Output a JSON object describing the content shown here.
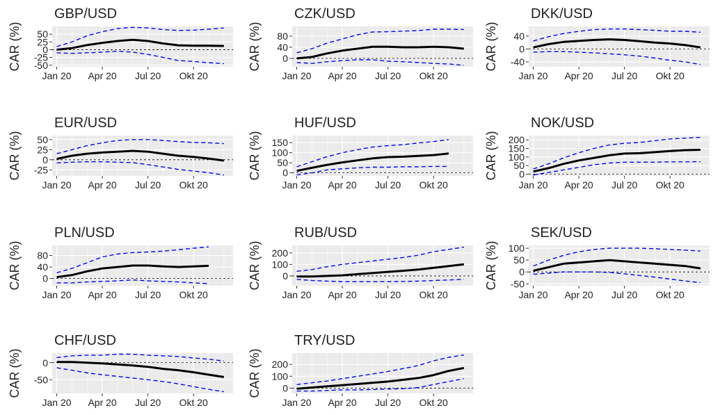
{
  "chart_data": [
    {
      "type": "line",
      "title": "GBP/USD",
      "ylabel": "CAR (%)",
      "categories": [
        "Jan 20",
        null,
        null,
        "Apr 20",
        null,
        null,
        "Jul 20",
        null,
        null,
        "Okt 20",
        null,
        null
      ],
      "ylim": [
        -55,
        75
      ],
      "yticks": [
        -50,
        -25,
        0,
        25,
        50
      ],
      "grid": true,
      "refline": 0,
      "series": [
        {
          "color": "#000000",
          "dash": false,
          "values": [
            0,
            5,
            15,
            22,
            28,
            32,
            28,
            20,
            14,
            13,
            13,
            12
          ]
        },
        {
          "color": "#0000ff",
          "dash": true,
          "values": [
            10,
            25,
            45,
            58,
            68,
            72,
            70,
            65,
            62,
            63,
            66,
            70
          ]
        },
        {
          "color": "#0000ff",
          "dash": true,
          "values": [
            -10,
            -12,
            -10,
            -8,
            -5,
            -8,
            -15,
            -25,
            -35,
            -38,
            -42,
            -45
          ]
        }
      ]
    },
    {
      "type": "line",
      "title": "CZK/USD",
      "ylabel": "CAR (%)",
      "categories": [
        "Jan 20",
        null,
        null,
        "Apr 20",
        null,
        null,
        "Jul 20",
        null,
        null,
        "Okt 20",
        null,
        null
      ],
      "ylim": [
        -30,
        115
      ],
      "yticks": [
        0,
        40,
        80
      ],
      "grid": true,
      "refline": 0,
      "series": [
        {
          "color": "#000000",
          "dash": false,
          "values": [
            0,
            5,
            18,
            28,
            35,
            42,
            42,
            40,
            40,
            42,
            40,
            35
          ]
        },
        {
          "color": "#0000ff",
          "dash": true,
          "values": [
            20,
            35,
            55,
            70,
            85,
            95,
            96,
            98,
            100,
            105,
            105,
            104
          ]
        },
        {
          "color": "#0000ff",
          "dash": true,
          "values": [
            -15,
            -18,
            -12,
            -8,
            -5,
            -5,
            -10,
            -12,
            -15,
            -18,
            -20,
            -25
          ]
        }
      ]
    },
    {
      "type": "line",
      "title": "DKK/USD",
      "ylabel": "CAR (%)",
      "categories": [
        "Jan 20",
        null,
        null,
        "Apr 20",
        null,
        null,
        "Jul 20",
        null,
        null,
        "Okt 20",
        null,
        null
      ],
      "ylim": [
        -55,
        70
      ],
      "yticks": [
        -40,
        0,
        40
      ],
      "grid": true,
      "refline": 0,
      "series": [
        {
          "color": "#000000",
          "dash": false,
          "values": [
            5,
            15,
            22,
            25,
            28,
            30,
            28,
            24,
            20,
            17,
            12,
            5
          ]
        },
        {
          "color": "#0000ff",
          "dash": true,
          "values": [
            25,
            38,
            48,
            55,
            60,
            62,
            62,
            60,
            58,
            55,
            55,
            52
          ]
        },
        {
          "color": "#0000ff",
          "dash": true,
          "values": [
            -10,
            -8,
            -8,
            -10,
            -12,
            -15,
            -18,
            -22,
            -28,
            -35,
            -40,
            -48
          ]
        }
      ]
    },
    {
      "type": "line",
      "title": "EUR/USD",
      "ylabel": "CAR (%)",
      "categories": [
        "Jan 20",
        null,
        null,
        "Apr 20",
        null,
        null,
        "Jul 20",
        null,
        null,
        "Okt 20",
        null,
        null
      ],
      "ylim": [
        -40,
        60
      ],
      "yticks": [
        -25,
        0,
        25,
        50
      ],
      "grid": true,
      "refline": 0,
      "series": [
        {
          "color": "#000000",
          "dash": false,
          "values": [
            2,
            10,
            15,
            18,
            20,
            22,
            20,
            15,
            10,
            7,
            3,
            -2
          ]
        },
        {
          "color": "#0000ff",
          "dash": true,
          "values": [
            15,
            25,
            35,
            42,
            48,
            50,
            50,
            48,
            45,
            43,
            42,
            40
          ]
        },
        {
          "color": "#0000ff",
          "dash": true,
          "values": [
            -8,
            -6,
            -5,
            -5,
            -6,
            -7,
            -12,
            -18,
            -24,
            -28,
            -32,
            -38
          ]
        }
      ]
    },
    {
      "type": "line",
      "title": "HUF/USD",
      "ylabel": "CAR (%)",
      "categories": [
        "Jan 20",
        null,
        null,
        "Apr 20",
        null,
        null,
        "Jul 20",
        null,
        null,
        "Okt 20",
        null,
        null
      ],
      "ylim": [
        -15,
        185
      ],
      "yticks": [
        0,
        50,
        100,
        150
      ],
      "grid": true,
      "refline": 0,
      "series": [
        {
          "color": "#000000",
          "dash": false,
          "values": [
            10,
            25,
            40,
            52,
            62,
            72,
            78,
            80,
            84,
            88,
            96,
            null
          ]
        },
        {
          "color": "#0000ff",
          "dash": true,
          "values": [
            30,
            55,
            80,
            100,
            115,
            128,
            135,
            140,
            148,
            155,
            165,
            null
          ]
        },
        {
          "color": "#0000ff",
          "dash": true,
          "values": [
            -10,
            0,
            15,
            20,
            25,
            28,
            28,
            30,
            30,
            32,
            32,
            null
          ]
        }
      ]
    },
    {
      "type": "line",
      "title": "NOK/USD",
      "ylabel": "CAR (%)",
      "categories": [
        "Jan 20",
        null,
        null,
        "Apr 20",
        null,
        null,
        "Jul 20",
        null,
        null,
        "Okt 20",
        null,
        null
      ],
      "ylim": [
        -10,
        225
      ],
      "yticks": [
        0,
        50,
        100,
        150,
        200
      ],
      "grid": true,
      "refline": 0,
      "series": [
        {
          "color": "#000000",
          "dash": false,
          "values": [
            15,
            35,
            60,
            80,
            95,
            110,
            120,
            122,
            128,
            135,
            140,
            142
          ]
        },
        {
          "color": "#0000ff",
          "dash": true,
          "values": [
            30,
            60,
            95,
            125,
            150,
            170,
            180,
            185,
            195,
            205,
            210,
            215
          ]
        },
        {
          "color": "#0000ff",
          "dash": true,
          "values": [
            -5,
            10,
            25,
            40,
            55,
            65,
            70,
            70,
            70,
            72,
            72,
            73
          ]
        }
      ]
    },
    {
      "type": "line",
      "title": "PLN/USD",
      "ylabel": "CAR (%)",
      "categories": [
        "Jan 20",
        null,
        null,
        "Apr 20",
        null,
        null,
        "Jul 20",
        null,
        null,
        "Okt 20",
        null,
        null
      ],
      "ylim": [
        -25,
        115
      ],
      "yticks": [
        0,
        40,
        80
      ],
      "grid": true,
      "refline": 0,
      "series": [
        {
          "color": "#000000",
          "dash": false,
          "values": [
            5,
            12,
            25,
            35,
            40,
            45,
            45,
            42,
            40,
            42,
            44,
            null
          ]
        },
        {
          "color": "#0000ff",
          "dash": true,
          "values": [
            20,
            35,
            55,
            75,
            85,
            90,
            92,
            95,
            100,
            105,
            110,
            null
          ]
        },
        {
          "color": "#0000ff",
          "dash": true,
          "values": [
            -15,
            -15,
            -12,
            -10,
            -8,
            -5,
            -8,
            -10,
            -12,
            -15,
            -18,
            null
          ]
        }
      ]
    },
    {
      "type": "line",
      "title": "RUB/USD",
      "ylabel": "CAR (%)",
      "categories": [
        "Jan 20",
        null,
        null,
        "Apr 20",
        null,
        null,
        "Jul 20",
        null,
        null,
        "Okt 20",
        null,
        null
      ],
      "ylim": [
        -85,
        265
      ],
      "yticks": [
        0,
        100,
        200
      ],
      "grid": true,
      "refline": 0,
      "series": [
        {
          "color": "#000000",
          "dash": false,
          "values": [
            -5,
            -5,
            0,
            5,
            15,
            25,
            35,
            45,
            55,
            70,
            85,
            100
          ]
        },
        {
          "color": "#0000ff",
          "dash": true,
          "values": [
            40,
            55,
            80,
            100,
            115,
            130,
            145,
            160,
            180,
            210,
            230,
            250
          ]
        },
        {
          "color": "#0000ff",
          "dash": true,
          "values": [
            -30,
            -40,
            -45,
            -50,
            -50,
            -50,
            -50,
            -48,
            -45,
            -40,
            -35,
            -30
          ]
        }
      ]
    },
    {
      "type": "line",
      "title": "SEK/USD",
      "ylabel": "CAR (%)",
      "categories": [
        "Jan 20",
        null,
        null,
        "Apr 20",
        null,
        null,
        "Jul 20",
        null,
        null,
        "Okt 20",
        null,
        null
      ],
      "ylim": [
        -58,
        112
      ],
      "yticks": [
        -50,
        0,
        50,
        100
      ],
      "grid": true,
      "refline": 0,
      "series": [
        {
          "color": "#000000",
          "dash": false,
          "values": [
            5,
            20,
            35,
            40,
            45,
            50,
            45,
            40,
            35,
            30,
            25,
            15
          ]
        },
        {
          "color": "#0000ff",
          "dash": true,
          "values": [
            25,
            50,
            70,
            85,
            95,
            100,
            100,
            100,
            98,
            95,
            92,
            88
          ]
        },
        {
          "color": "#0000ff",
          "dash": true,
          "values": [
            -10,
            -5,
            0,
            0,
            0,
            -2,
            -8,
            -15,
            -22,
            -30,
            -38,
            -45
          ]
        }
      ]
    },
    {
      "type": "line",
      "title": "CHF/USD",
      "ylabel": "CAR (%)",
      "categories": [
        "Jan 20",
        null,
        null,
        "Apr 20",
        null,
        null,
        "Jul 20",
        null,
        null,
        "Okt 20",
        null,
        null
      ],
      "ylim": [
        -90,
        28
      ],
      "yticks": [
        -50,
        0
      ],
      "grid": true,
      "refline": 0,
      "series": [
        {
          "color": "#000000",
          "dash": false,
          "values": [
            2,
            2,
            0,
            -2,
            -5,
            -8,
            -12,
            -18,
            -22,
            -28,
            -35,
            -42
          ]
        },
        {
          "color": "#0000ff",
          "dash": true,
          "values": [
            15,
            20,
            22,
            22,
            25,
            25,
            22,
            20,
            18,
            14,
            10,
            5
          ]
        },
        {
          "color": "#0000ff",
          "dash": true,
          "values": [
            -15,
            -22,
            -30,
            -35,
            -40,
            -45,
            -50,
            -55,
            -62,
            -70,
            -78,
            -85
          ]
        }
      ]
    },
    {
      "type": "line",
      "title": "TRY/USD",
      "ylabel": "CAR (%)",
      "categories": [
        "Jan 20",
        null,
        null,
        "Apr 20",
        null,
        null,
        "Jul 20",
        null,
        null,
        "Okt 20",
        null,
        null
      ],
      "ylim": [
        -45,
        295
      ],
      "yticks": [
        0,
        100,
        200
      ],
      "grid": true,
      "refline": 0,
      "series": [
        {
          "color": "#000000",
          "dash": false,
          "values": [
            -5,
            5,
            15,
            25,
            35,
            45,
            55,
            70,
            85,
            110,
            145,
            170
          ]
        },
        {
          "color": "#0000ff",
          "dash": true,
          "values": [
            30,
            45,
            60,
            80,
            100,
            120,
            140,
            165,
            190,
            230,
            260,
            280
          ]
        },
        {
          "color": "#0000ff",
          "dash": true,
          "values": [
            -25,
            -25,
            -20,
            -15,
            -15,
            -12,
            -8,
            -5,
            5,
            30,
            55,
            80
          ]
        }
      ]
    }
  ]
}
